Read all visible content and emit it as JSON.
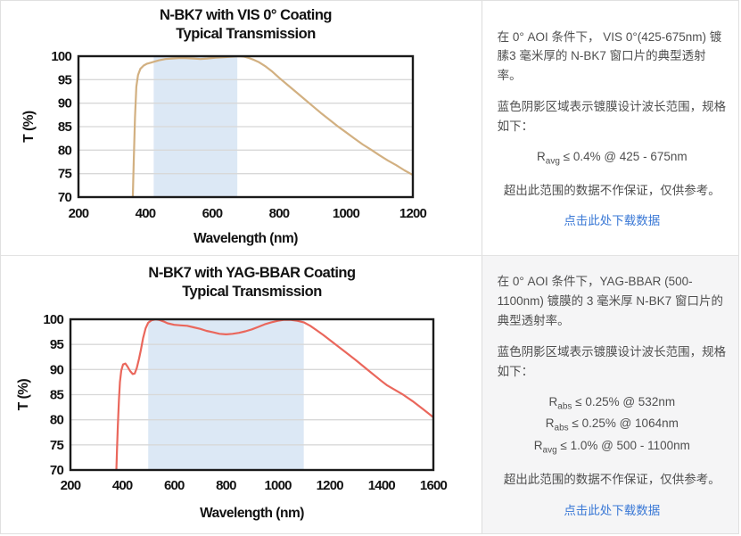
{
  "page": {
    "background": "#ffffff",
    "divider_color": "#e3e3e3",
    "gray_panel_bg": "#f5f5f6"
  },
  "chart_data": [
    {
      "type": "line",
      "title": "N-BK7 with VIS 0° Coating",
      "subtitle": "Typical Transmission",
      "xlabel": "Wavelength (nm)",
      "ylabel": "T (%)",
      "xlim": [
        200,
        1200
      ],
      "ylim": [
        70,
        100
      ],
      "xticks": [
        200,
        400,
        600,
        800,
        1000,
        1200
      ],
      "yticks": [
        100,
        95,
        90,
        85,
        80,
        75,
        70
      ],
      "grid": true,
      "legend": "none",
      "band_nm": [
        425,
        675
      ],
      "band_color": "#dce8f5",
      "line_color": "#d2b081",
      "grid_color": "#d8d8d8",
      "frame_color": "#1a1a1a",
      "tick_color": "#121212",
      "series": [
        {
          "name": "VIS 0° coated N-BK7 window transmission",
          "points": [
            [
              362,
              69
            ],
            [
              365,
              77
            ],
            [
              369,
              87
            ],
            [
              373,
              93.5
            ],
            [
              378,
              96
            ],
            [
              385,
              97.3
            ],
            [
              395,
              98
            ],
            [
              405,
              98.4
            ],
            [
              415,
              98.6
            ],
            [
              425,
              98.8
            ],
            [
              440,
              99.1
            ],
            [
              460,
              99.4
            ],
            [
              480,
              99.5
            ],
            [
              500,
              99.6
            ],
            [
              520,
              99.6
            ],
            [
              545,
              99.5
            ],
            [
              565,
              99.4
            ],
            [
              585,
              99.5
            ],
            [
              610,
              99.7
            ],
            [
              635,
              99.8
            ],
            [
              660,
              99.9
            ],
            [
              680,
              100
            ],
            [
              695,
              99.9
            ],
            [
              710,
              99.6
            ],
            [
              725,
              99.2
            ],
            [
              740,
              98.7
            ],
            [
              760,
              97.8
            ],
            [
              780,
              96.7
            ],
            [
              800,
              95.4
            ],
            [
              825,
              93.9
            ],
            [
              850,
              92.4
            ],
            [
              875,
              90.9
            ],
            [
              900,
              89.4
            ],
            [
              925,
              87.9
            ],
            [
              950,
              86.5
            ],
            [
              975,
              85.1
            ],
            [
              1000,
              83.8
            ],
            [
              1025,
              82.5
            ],
            [
              1050,
              81.2
            ],
            [
              1075,
              80.1
            ],
            [
              1100,
              78.9
            ],
            [
              1125,
              77.8
            ],
            [
              1150,
              76.8
            ],
            [
              1175,
              75.7
            ],
            [
              1200,
              74.7
            ]
          ]
        }
      ]
    },
    {
      "type": "line",
      "title": "N-BK7 with YAG-BBAR Coating",
      "subtitle": "Typical Transmission",
      "xlabel": "Wavelength (nm)",
      "ylabel": "T (%)",
      "xlim": [
        200,
        1600
      ],
      "ylim": [
        70,
        100
      ],
      "xticks": [
        200,
        400,
        600,
        800,
        1000,
        1200,
        1400,
        1600
      ],
      "yticks": [
        100,
        95,
        90,
        85,
        80,
        75,
        70
      ],
      "grid": true,
      "legend": "none",
      "band_nm": [
        500,
        1100
      ],
      "band_color": "#dce8f5",
      "line_color": "#ea675c",
      "grid_color": "#d8d8d8",
      "frame_color": "#1a1a1a",
      "tick_color": "#121212",
      "series": [
        {
          "name": "YAG-BBAR coated N-BK7 window transmission",
          "points": [
            [
              377,
              70
            ],
            [
              380,
              74.5
            ],
            [
              383,
              79
            ],
            [
              387,
              84
            ],
            [
              391,
              87.5
            ],
            [
              396,
              89.8
            ],
            [
              403,
              91
            ],
            [
              412,
              91.2
            ],
            [
              420,
              90.6
            ],
            [
              430,
              89.7
            ],
            [
              440,
              89.1
            ],
            [
              448,
              89.2
            ],
            [
              456,
              90.3
            ],
            [
              465,
              92.2
            ],
            [
              472,
              94
            ],
            [
              480,
              96.2
            ],
            [
              490,
              98.2
            ],
            [
              500,
              99.3
            ],
            [
              513,
              99.8
            ],
            [
              528,
              100
            ],
            [
              542,
              99.9
            ],
            [
              558,
              99.6
            ],
            [
              575,
              99.2
            ],
            [
              600,
              98.9
            ],
            [
              625,
              98.8
            ],
            [
              650,
              98.7
            ],
            [
              675,
              98.4
            ],
            [
              700,
              98.1
            ],
            [
              725,
              97.7
            ],
            [
              750,
              97.4
            ],
            [
              775,
              97.1
            ],
            [
              800,
              97
            ],
            [
              825,
              97.1
            ],
            [
              850,
              97.3
            ],
            [
              875,
              97.6
            ],
            [
              900,
              98
            ],
            [
              925,
              98.5
            ],
            [
              950,
              99
            ],
            [
              975,
              99.4
            ],
            [
              1000,
              99.7
            ],
            [
              1025,
              99.9
            ],
            [
              1050,
              99.9
            ],
            [
              1075,
              99.7
            ],
            [
              1100,
              99.4
            ],
            [
              1125,
              98.7
            ],
            [
              1150,
              97.8
            ],
            [
              1175,
              96.9
            ],
            [
              1200,
              95.9
            ],
            [
              1250,
              93.9
            ],
            [
              1300,
              91.9
            ],
            [
              1350,
              89.8
            ],
            [
              1400,
              87.7
            ],
            [
              1420,
              86.9
            ],
            [
              1440,
              86.3
            ],
            [
              1480,
              85.1
            ],
            [
              1520,
              83.7
            ],
            [
              1560,
              82.1
            ],
            [
              1600,
              80.5
            ]
          ]
        }
      ]
    }
  ],
  "panels": [
    {
      "info": {
        "description": "在 0° AOI 条件下， VIS 0°(425-675nm) 镀膆3 毫米厚的 N-BK7 窗口片的典型透射率。",
        "band_note": "蓝色阴影区域表示镀膜设计波长范围，规格如下：",
        "specs": [
          {
            "base": "R",
            "sub": "avg",
            "text": "≤ 0.4% @ 425 - 675nm"
          }
        ],
        "caution": "超出此范围的数据不作保证，仅供参考。",
        "download_label": "点击此处下载数据"
      }
    },
    {
      "info": {
        "description": "在 0° AOI 条件下，YAG-BBAR (500-1100nm) 镀膜的 3 毫米厚 N-BK7 窗口片的典型透射率。",
        "band_note": "蓝色阴影区域表示镀膜设计波长范围，规格如下：",
        "specs": [
          {
            "base": "R",
            "sub": "abs",
            "text": "≤ 0.25% @ 532nm"
          },
          {
            "base": "R",
            "sub": "abs",
            "text": "≤ 0.25% @ 1064nm"
          },
          {
            "base": "R",
            "sub": "avg",
            "text": "≤ 1.0% @ 500 - 1100nm"
          }
        ],
        "caution": "超出此范围的数据不作保证，仅供参考。",
        "download_label": "点击此处下载数据"
      }
    }
  ]
}
